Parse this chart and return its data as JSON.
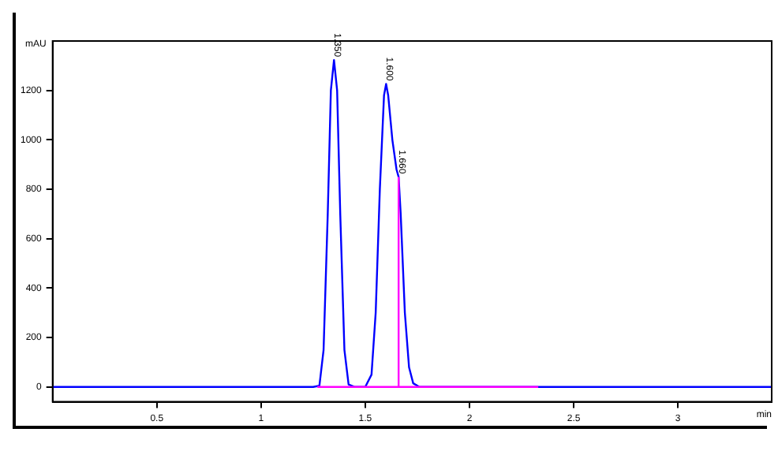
{
  "chart_data": {
    "type": "line",
    "xlabel": "min",
    "ylabel": "mAU",
    "xlim": [
      0,
      3.45
    ],
    "ylim": [
      -60,
      1400
    ],
    "xticks": [
      0.5,
      1,
      1.5,
      2,
      2.5,
      3
    ],
    "yticks": [
      0,
      200,
      400,
      600,
      800,
      1000,
      1200
    ],
    "grid": false,
    "legend": false,
    "marker": "none",
    "line_style": "solid",
    "series": [
      {
        "color": "#0000ff",
        "x": [
          0,
          1.25,
          1.28,
          1.3,
          1.32,
          1.335,
          1.35,
          1.365,
          1.38,
          1.4,
          1.42,
          1.45,
          1.5,
          1.53,
          1.55,
          1.57,
          1.59,
          1.6,
          1.61,
          1.63,
          1.65,
          1.66,
          1.67,
          1.69,
          1.71,
          1.73,
          1.76,
          3.45
        ],
        "values": [
          0,
          0,
          5,
          150,
          700,
          1200,
          1323,
          1200,
          700,
          150,
          10,
          0,
          0,
          50,
          300,
          800,
          1180,
          1226,
          1180,
          1000,
          880,
          850,
          700,
          300,
          80,
          15,
          0,
          0
        ]
      },
      {
        "color": "#ff00ff",
        "x": [
          1.27,
          2.33
        ],
        "values": [
          0,
          0
        ]
      },
      {
        "color": "#ff00ff",
        "x": [
          1.66,
          1.66
        ],
        "values": [
          0,
          850
        ]
      }
    ],
    "annotations": [
      {
        "text": "1.350",
        "x": 1.35,
        "y": 1323
      },
      {
        "text": "1.600",
        "x": 1.6,
        "y": 1226
      },
      {
        "text": "1.660",
        "x": 1.66,
        "y": 850
      }
    ]
  }
}
